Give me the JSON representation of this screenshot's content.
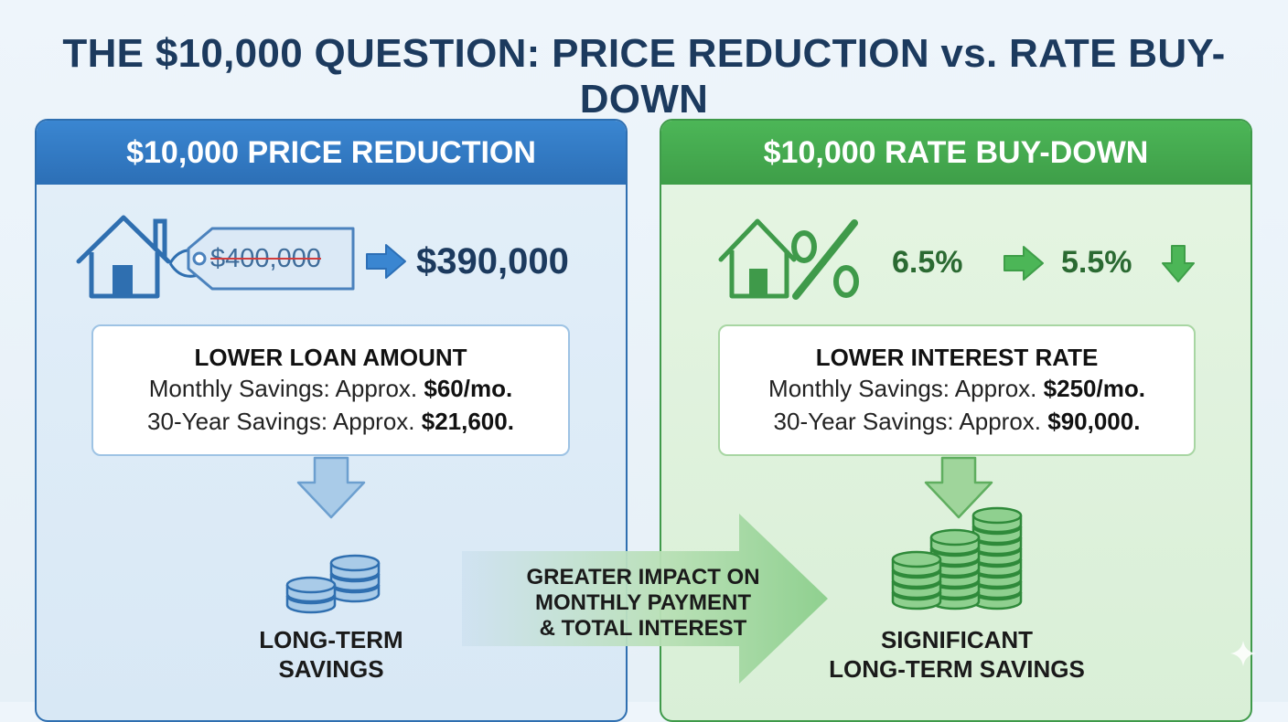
{
  "title": "THE $10,000 QUESTION: PRICE REDUCTION vs. RATE BUY-DOWN",
  "left_panel": {
    "header": "$10,000 PRICE REDUCTION",
    "original_price": "$400,000",
    "new_price": "$390,000",
    "box_title": "LOWER LOAN AMOUNT",
    "monthly_label": "Monthly Savings: Approx.",
    "monthly_value": "$60/mo.",
    "thirty_label": "30-Year Savings: Approx.",
    "thirty_value": "$21,600.",
    "caption_line1": "LONG-TERM",
    "caption_line2": "SAVINGS",
    "color": "#2f6fb0"
  },
  "right_panel": {
    "header": "$10,000 RATE BUY-DOWN",
    "old_rate": "6.5%",
    "new_rate": "5.5%",
    "box_title": "LOWER INTEREST RATE",
    "monthly_label": "Monthly Savings: Approx.",
    "monthly_value": "$250/mo.",
    "thirty_label": "30-Year Savings: Approx.",
    "thirty_value": "$90,000.",
    "caption_line1": "SIGNIFICANT",
    "caption_line2": "LONG-TERM SAVINGS",
    "color": "#3f9a4a"
  },
  "center": {
    "line1": "GREATER IMPACT ON",
    "line2": "MONTHLY PAYMENT",
    "line3": "& TOTAL INTEREST"
  }
}
